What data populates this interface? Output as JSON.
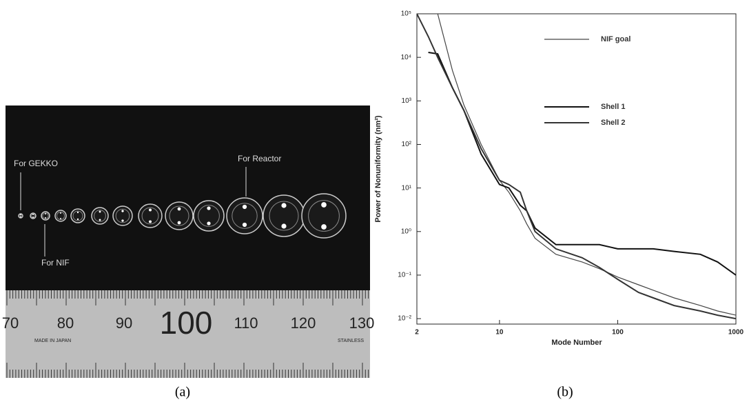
{
  "photo": {
    "labels": [
      "For GEKKO",
      "For NIF",
      "For Reactor"
    ],
    "ruler_numbers": [
      "70",
      "80",
      "90",
      "100",
      "110",
      "120",
      "130"
    ],
    "ruler_marks": [
      "MADE IN JAPAN",
      "STAINLESS"
    ]
  },
  "captions": [
    "(a)",
    "(b)"
  ],
  "chart_data": {
    "type": "line",
    "x_label": "Mode Number",
    "y_label": "Power of Nonuniformity (nm²)",
    "log_x": true,
    "log_y": true,
    "x": [
      2,
      2.5,
      3,
      4,
      5,
      7,
      10,
      12,
      15,
      17,
      20,
      30,
      50,
      70,
      100,
      150,
      200,
      300,
      500,
      700,
      1000
    ],
    "series": [
      {
        "name": "NIF goal",
        "color": "#444444",
        "width": 1.2,
        "values": [
          null,
          null,
          100000,
          5000,
          800,
          100,
          15,
          8,
          3,
          1.5,
          0.7,
          0.3,
          0.2,
          0.14,
          0.09,
          0.06,
          0.045,
          0.03,
          0.02,
          0.015,
          0.012
        ]
      },
      {
        "name": "Shell 1",
        "color": "#111111",
        "width": 2,
        "values": [
          null,
          13000,
          12000,
          2000,
          600,
          60,
          12,
          10,
          4,
          3,
          1.2,
          0.5,
          0.5,
          0.5,
          0.4,
          0.4,
          0.4,
          0.35,
          0.3,
          0.2,
          0.1
        ]
      },
      {
        "name": "Shell 2",
        "color": "#333333",
        "width": 2,
        "values": [
          100000,
          30000,
          10000,
          2000,
          600,
          80,
          15,
          12,
          8,
          3,
          1,
          0.4,
          0.25,
          0.15,
          0.08,
          0.04,
          0.03,
          0.02,
          0.015,
          0.012,
          0.01
        ]
      }
    ],
    "xlim": [
      2,
      1000
    ],
    "ylim": [
      0.0075,
      100000
    ],
    "xticks": [
      2,
      10,
      100,
      1000
    ],
    "yticks": [
      {
        "value": 100000,
        "label": "10⁵"
      },
      {
        "value": 10000,
        "label": "10⁴"
      },
      {
        "value": 1000,
        "label": "10³"
      },
      {
        "value": 100,
        "label": "10²"
      },
      {
        "value": 10,
        "label": "10¹"
      },
      {
        "value": 1,
        "label": "10⁰"
      },
      {
        "value": 0.1,
        "label": "10⁻¹"
      },
      {
        "value": 0.01,
        "label": "10⁻²"
      }
    ]
  }
}
